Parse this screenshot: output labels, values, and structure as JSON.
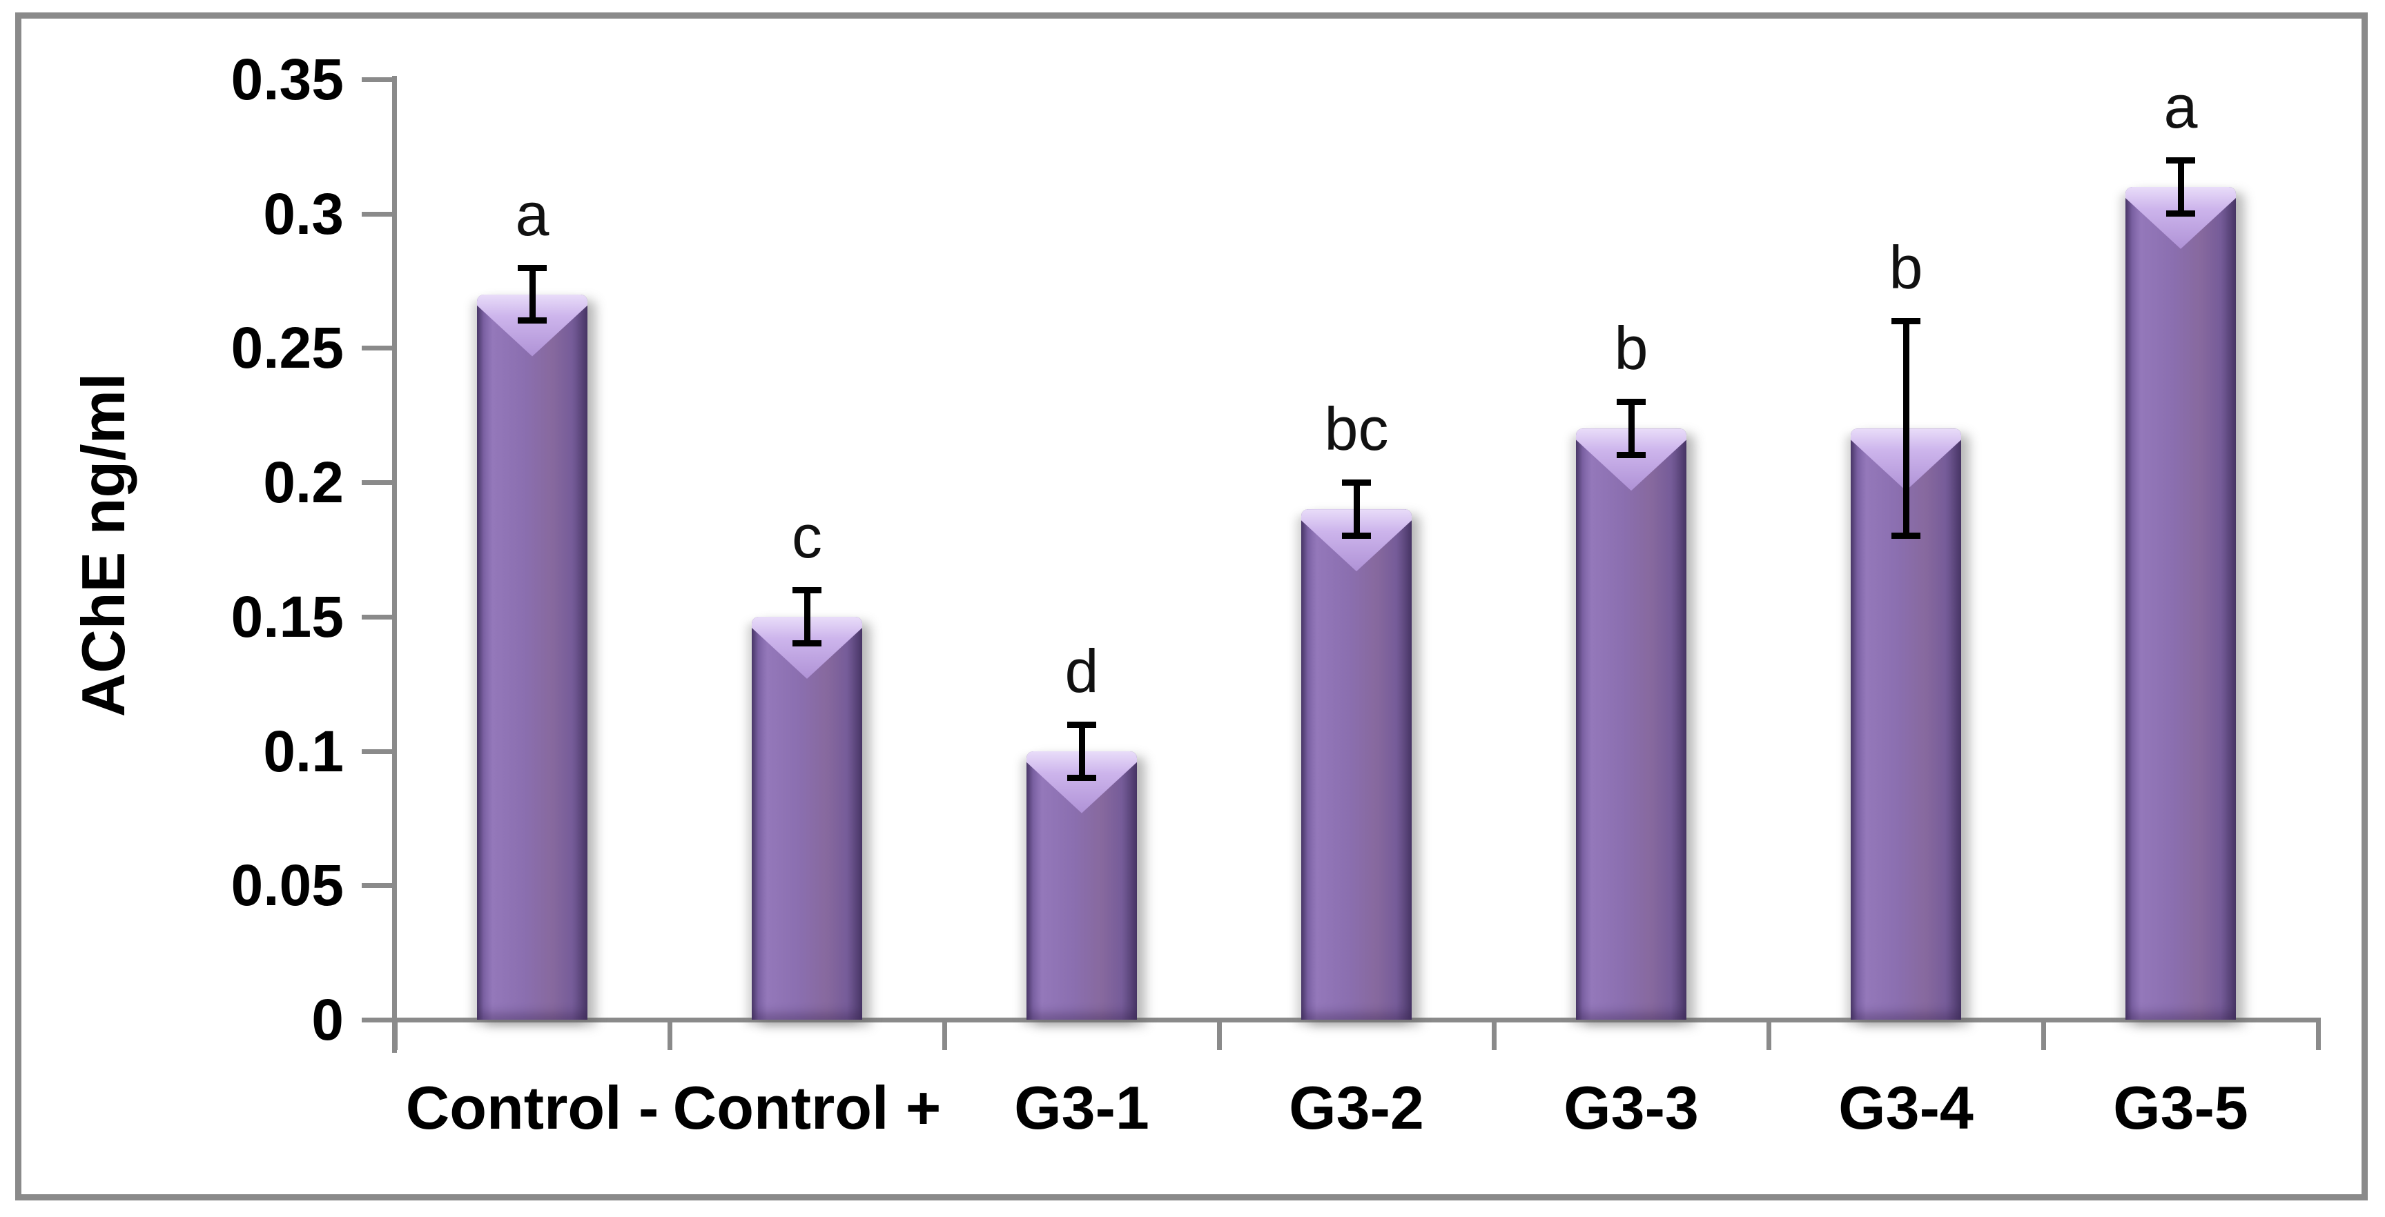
{
  "chart_data": {
    "type": "bar",
    "title": "",
    "ylabel": "AChE ng/ml",
    "xlabel": "",
    "categories": [
      "Control -",
      "Control +",
      "G3-1",
      "G3-2",
      "G3-3",
      "G3-4",
      "G3-5"
    ],
    "values": [
      0.27,
      0.15,
      0.1,
      0.19,
      0.22,
      0.22,
      0.31
    ],
    "error_bars": [
      0.01,
      0.01,
      0.01,
      0.01,
      0.01,
      0.04,
      0.01
    ],
    "significance_letters": [
      "a",
      "c",
      "d",
      "bc",
      "b",
      "b",
      "a"
    ],
    "y_tick_labels": [
      "0",
      "0.05",
      "0.1",
      "0.15",
      "0.2",
      "0.25",
      "0.3",
      "0.35"
    ],
    "y_tick_values": [
      0,
      0.05,
      0.1,
      0.15,
      0.2,
      0.25,
      0.3,
      0.35
    ],
    "ylim": [
      0,
      0.35
    ],
    "grid": "off",
    "legend": "none",
    "colors": {
      "bar_fill": "#8064A2",
      "bar_edge_dark": "#4F3D6F",
      "bar_highlight": "#CDB5EC",
      "axis_line": "#8A8A8A",
      "error_bar": "#000000",
      "text": "#000000",
      "background": "#FFFFFF"
    }
  }
}
